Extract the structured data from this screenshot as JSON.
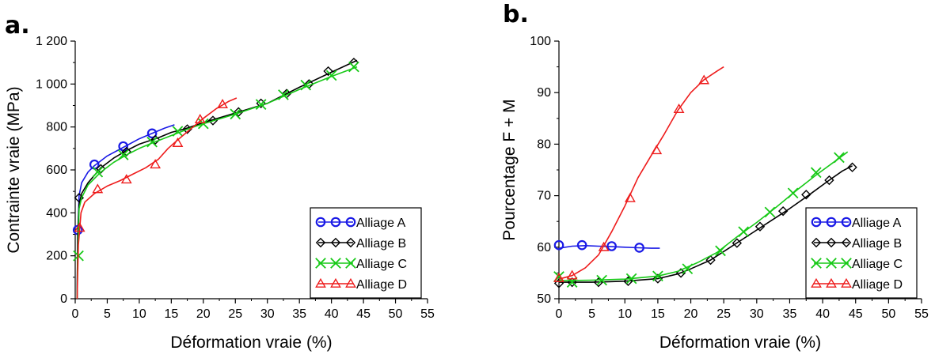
{
  "colors": {
    "Alliage A": "#1a1ae6",
    "Alliage B": "#000000",
    "Alliage C": "#17c917",
    "Alliage D": "#ee1c1c"
  },
  "chart_data": [
    {
      "panel": "a.",
      "type": "line",
      "xlabel": "Déformation vraie (%)",
      "ylabel": "Contrainte vraie (MPa)",
      "xlim": [
        0,
        55
      ],
      "ylim": [
        0,
        1200
      ],
      "xticks": [
        0,
        5,
        10,
        15,
        20,
        25,
        30,
        35,
        40,
        45,
        50,
        55
      ],
      "yticks": [
        0,
        200,
        400,
        600,
        800,
        1000,
        1200
      ],
      "ytick_labels": [
        "0",
        "200",
        "400",
        "600",
        "800",
        "1 000",
        "1 200"
      ],
      "legend_position": "bottom-right",
      "series": [
        {
          "name": "Alliage A",
          "marker": "circle",
          "curve": [
            [
              0.3,
              0
            ],
            [
              0.4,
              300
            ],
            [
              0.6,
              480
            ],
            [
              1,
              540
            ],
            [
              2,
              590
            ],
            [
              3,
              620
            ],
            [
              5,
              665
            ],
            [
              7.5,
              705
            ],
            [
              10,
              745
            ],
            [
              12,
              770
            ],
            [
              14,
              795
            ],
            [
              15.5,
              810
            ]
          ],
          "markers": [
            [
              0.4,
              320
            ],
            [
              3,
              625
            ],
            [
              7.5,
              710
            ],
            [
              12,
              770
            ]
          ]
        },
        {
          "name": "Alliage B",
          "marker": "diamond",
          "curve": [
            [
              0.3,
              0
            ],
            [
              0.4,
              300
            ],
            [
              0.6,
              440
            ],
            [
              1,
              490
            ],
            [
              2,
              540
            ],
            [
              4,
              610
            ],
            [
              6,
              655
            ],
            [
              8,
              690
            ],
            [
              10,
              720
            ],
            [
              13,
              750
            ],
            [
              15,
              775
            ],
            [
              17,
              790
            ],
            [
              20,
              820
            ],
            [
              25,
              865
            ],
            [
              30,
              910
            ],
            [
              35,
              985
            ],
            [
              40,
              1055
            ],
            [
              44,
              1110
            ]
          ],
          "markers": [
            [
              0.6,
              470
            ],
            [
              4,
              605
            ],
            [
              8,
              685
            ],
            [
              12.5,
              740
            ],
            [
              17.5,
              790
            ],
            [
              21.5,
              830
            ],
            [
              25.5,
              870
            ],
            [
              29,
              910
            ],
            [
              33,
              955
            ],
            [
              36.5,
              1000
            ],
            [
              39.5,
              1060
            ],
            [
              43.5,
              1100
            ]
          ]
        },
        {
          "name": "Alliage C",
          "marker": "cross",
          "curve": [
            [
              0.3,
              0
            ],
            [
              0.4,
              200
            ],
            [
              0.6,
              420
            ],
            [
              1,
              470
            ],
            [
              2,
              530
            ],
            [
              4,
              590
            ],
            [
              6,
              635
            ],
            [
              8,
              670
            ],
            [
              10,
              700
            ],
            [
              12,
              725
            ],
            [
              15,
              760
            ],
            [
              18,
              795
            ],
            [
              20,
              815
            ],
            [
              25,
              860
            ],
            [
              30,
              910
            ],
            [
              35,
              975
            ],
            [
              40,
              1035
            ],
            [
              44,
              1080
            ]
          ],
          "markers": [
            [
              0.5,
              200
            ],
            [
              3.5,
              590
            ],
            [
              7.5,
              670
            ],
            [
              12,
              730
            ],
            [
              16,
              780
            ],
            [
              20,
              815
            ],
            [
              25,
              860
            ],
            [
              29,
              905
            ],
            [
              32.5,
              950
            ],
            [
              36,
              995
            ],
            [
              40,
              1040
            ],
            [
              43.5,
              1080
            ]
          ]
        },
        {
          "name": "Alliage D",
          "marker": "triangle",
          "curve": [
            [
              0.3,
              0
            ],
            [
              0.5,
              250
            ],
            [
              0.9,
              400
            ],
            [
              1.5,
              450
            ],
            [
              3,
              490
            ],
            [
              5,
              525
            ],
            [
              7,
              550
            ],
            [
              9,
              580
            ],
            [
              11,
              610
            ],
            [
              13,
              650
            ],
            [
              14.5,
              700
            ],
            [
              16,
              740
            ],
            [
              18,
              790
            ],
            [
              20,
              840
            ],
            [
              22,
              885
            ],
            [
              24,
              920
            ],
            [
              25.2,
              935
            ]
          ],
          "markers": [
            [
              0.7,
              330
            ],
            [
              3.5,
              510
            ],
            [
              8,
              555
            ],
            [
              12.5,
              625
            ],
            [
              16,
              725
            ],
            [
              19.5,
              835
            ],
            [
              23,
              905
            ]
          ]
        }
      ]
    },
    {
      "panel": "b.",
      "type": "line",
      "xlabel": "Déformation vraie (%)",
      "ylabel": "Pourcentage F + M",
      "xlim": [
        0,
        55
      ],
      "ylim": [
        50,
        100
      ],
      "xticks": [
        0,
        5,
        10,
        15,
        20,
        25,
        30,
        35,
        40,
        45,
        50,
        55
      ],
      "yticks": [
        50,
        60,
        70,
        80,
        90,
        100
      ],
      "ytick_labels": [
        "50",
        "60",
        "70",
        "80",
        "90",
        "100"
      ],
      "legend_position": "bottom-right",
      "series": [
        {
          "name": "Alliage A",
          "marker": "circle",
          "curve": [
            [
              0,
              59.8
            ],
            [
              2,
              60.2
            ],
            [
              4,
              60.3
            ],
            [
              6,
              60.2
            ],
            [
              8,
              60.1
            ],
            [
              10,
              60.0
            ],
            [
              12,
              59.9
            ],
            [
              14,
              59.8
            ],
            [
              15.3,
              59.8
            ]
          ],
          "markers": [
            [
              0,
              60.4
            ],
            [
              3.5,
              60.4
            ],
            [
              8,
              60.2
            ],
            [
              12.2,
              59.9
            ]
          ]
        },
        {
          "name": "Alliage B",
          "marker": "diamond",
          "curve": [
            [
              0,
              53.2
            ],
            [
              5,
              53.2
            ],
            [
              10,
              53.4
            ],
            [
              15,
              53.9
            ],
            [
              18,
              54.8
            ],
            [
              20,
              55.8
            ],
            [
              23,
              57.5
            ],
            [
              26,
              60.0
            ],
            [
              29,
              62.5
            ],
            [
              32,
              65.0
            ],
            [
              35,
              67.5
            ],
            [
              38,
              70.2
            ],
            [
              41,
              73.0
            ],
            [
              43,
              74.8
            ],
            [
              44.5,
              75.8
            ]
          ],
          "markers": [
            [
              0,
              53.0
            ],
            [
              2,
              53.2
            ],
            [
              6,
              53.2
            ],
            [
              10.5,
              53.4
            ],
            [
              15,
              53.9
            ],
            [
              18.5,
              55.0
            ],
            [
              23,
              57.5
            ],
            [
              27,
              60.8
            ],
            [
              30.5,
              64.0
            ],
            [
              34,
              67.0
            ],
            [
              37.5,
              70.2
            ],
            [
              41,
              73.0
            ],
            [
              44.5,
              75.5
            ]
          ]
        },
        {
          "name": "Alliage C",
          "marker": "cross",
          "curve": [
            [
              0,
              53.5
            ],
            [
              5,
              53.6
            ],
            [
              10,
              53.8
            ],
            [
              15,
              54.4
            ],
            [
              18,
              55.3
            ],
            [
              21,
              57.0
            ],
            [
              24,
              59.0
            ],
            [
              27,
              62.0
            ],
            [
              30,
              64.8
            ],
            [
              33,
              67.8
            ],
            [
              36,
              71.0
            ],
            [
              39,
              74.0
            ],
            [
              42,
              76.8
            ],
            [
              43.8,
              78.5
            ]
          ],
          "markers": [
            [
              0,
              54.3
            ],
            [
              2,
              53.2
            ],
            [
              6.5,
              53.6
            ],
            [
              11,
              53.9
            ],
            [
              15,
              54.4
            ],
            [
              19.5,
              55.8
            ],
            [
              24.5,
              59.3
            ],
            [
              28,
              63.0
            ],
            [
              32,
              66.8
            ],
            [
              35.5,
              70.5
            ],
            [
              39,
              74.5
            ],
            [
              42.5,
              77.4
            ]
          ]
        },
        {
          "name": "Alliage D",
          "marker": "triangle",
          "curve": [
            [
              0,
              53.8
            ],
            [
              2,
              54.5
            ],
            [
              4,
              56.0
            ],
            [
              6,
              58.5
            ],
            [
              8,
              63.0
            ],
            [
              10,
              68.0
            ],
            [
              12,
              73.5
            ],
            [
              14,
              77.8
            ],
            [
              16,
              82.0
            ],
            [
              18,
              86.5
            ],
            [
              20,
              90.0
            ],
            [
              22,
              92.5
            ],
            [
              24,
              94.2
            ],
            [
              25,
              95.0
            ]
          ],
          "markers": [
            [
              0,
              54.0
            ],
            [
              2,
              54.5
            ],
            [
              6.8,
              60.0
            ],
            [
              10.8,
              69.5
            ],
            [
              14.8,
              78.8
            ],
            [
              18.2,
              86.8
            ],
            [
              22,
              92.4
            ]
          ]
        }
      ]
    }
  ]
}
